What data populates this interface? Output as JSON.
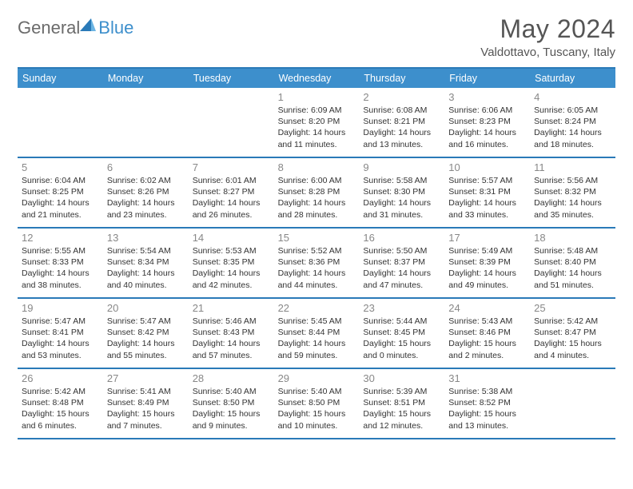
{
  "logo": {
    "part1": "General",
    "part2": "Blue"
  },
  "title": "May 2024",
  "location": "Valdottavo, Tuscany, Italy",
  "colors": {
    "brand_blue": "#3d8fcc",
    "border_blue": "#2a7ab8",
    "header_text": "#ffffff",
    "logo_gray": "#6b6b6b",
    "title_gray": "#555555",
    "daynum_gray": "#888888",
    "body_text": "#333333",
    "background": "#ffffff"
  },
  "day_headers": [
    "Sunday",
    "Monday",
    "Tuesday",
    "Wednesday",
    "Thursday",
    "Friday",
    "Saturday"
  ],
  "weeks": [
    [
      {
        "n": "",
        "sr": "",
        "ss": "",
        "dl": ""
      },
      {
        "n": "",
        "sr": "",
        "ss": "",
        "dl": ""
      },
      {
        "n": "",
        "sr": "",
        "ss": "",
        "dl": ""
      },
      {
        "n": "1",
        "sr": "Sunrise: 6:09 AM",
        "ss": "Sunset: 8:20 PM",
        "dl": "Daylight: 14 hours and 11 minutes."
      },
      {
        "n": "2",
        "sr": "Sunrise: 6:08 AM",
        "ss": "Sunset: 8:21 PM",
        "dl": "Daylight: 14 hours and 13 minutes."
      },
      {
        "n": "3",
        "sr": "Sunrise: 6:06 AM",
        "ss": "Sunset: 8:23 PM",
        "dl": "Daylight: 14 hours and 16 minutes."
      },
      {
        "n": "4",
        "sr": "Sunrise: 6:05 AM",
        "ss": "Sunset: 8:24 PM",
        "dl": "Daylight: 14 hours and 18 minutes."
      }
    ],
    [
      {
        "n": "5",
        "sr": "Sunrise: 6:04 AM",
        "ss": "Sunset: 8:25 PM",
        "dl": "Daylight: 14 hours and 21 minutes."
      },
      {
        "n": "6",
        "sr": "Sunrise: 6:02 AM",
        "ss": "Sunset: 8:26 PM",
        "dl": "Daylight: 14 hours and 23 minutes."
      },
      {
        "n": "7",
        "sr": "Sunrise: 6:01 AM",
        "ss": "Sunset: 8:27 PM",
        "dl": "Daylight: 14 hours and 26 minutes."
      },
      {
        "n": "8",
        "sr": "Sunrise: 6:00 AM",
        "ss": "Sunset: 8:28 PM",
        "dl": "Daylight: 14 hours and 28 minutes."
      },
      {
        "n": "9",
        "sr": "Sunrise: 5:58 AM",
        "ss": "Sunset: 8:30 PM",
        "dl": "Daylight: 14 hours and 31 minutes."
      },
      {
        "n": "10",
        "sr": "Sunrise: 5:57 AM",
        "ss": "Sunset: 8:31 PM",
        "dl": "Daylight: 14 hours and 33 minutes."
      },
      {
        "n": "11",
        "sr": "Sunrise: 5:56 AM",
        "ss": "Sunset: 8:32 PM",
        "dl": "Daylight: 14 hours and 35 minutes."
      }
    ],
    [
      {
        "n": "12",
        "sr": "Sunrise: 5:55 AM",
        "ss": "Sunset: 8:33 PM",
        "dl": "Daylight: 14 hours and 38 minutes."
      },
      {
        "n": "13",
        "sr": "Sunrise: 5:54 AM",
        "ss": "Sunset: 8:34 PM",
        "dl": "Daylight: 14 hours and 40 minutes."
      },
      {
        "n": "14",
        "sr": "Sunrise: 5:53 AM",
        "ss": "Sunset: 8:35 PM",
        "dl": "Daylight: 14 hours and 42 minutes."
      },
      {
        "n": "15",
        "sr": "Sunrise: 5:52 AM",
        "ss": "Sunset: 8:36 PM",
        "dl": "Daylight: 14 hours and 44 minutes."
      },
      {
        "n": "16",
        "sr": "Sunrise: 5:50 AM",
        "ss": "Sunset: 8:37 PM",
        "dl": "Daylight: 14 hours and 47 minutes."
      },
      {
        "n": "17",
        "sr": "Sunrise: 5:49 AM",
        "ss": "Sunset: 8:39 PM",
        "dl": "Daylight: 14 hours and 49 minutes."
      },
      {
        "n": "18",
        "sr": "Sunrise: 5:48 AM",
        "ss": "Sunset: 8:40 PM",
        "dl": "Daylight: 14 hours and 51 minutes."
      }
    ],
    [
      {
        "n": "19",
        "sr": "Sunrise: 5:47 AM",
        "ss": "Sunset: 8:41 PM",
        "dl": "Daylight: 14 hours and 53 minutes."
      },
      {
        "n": "20",
        "sr": "Sunrise: 5:47 AM",
        "ss": "Sunset: 8:42 PM",
        "dl": "Daylight: 14 hours and 55 minutes."
      },
      {
        "n": "21",
        "sr": "Sunrise: 5:46 AM",
        "ss": "Sunset: 8:43 PM",
        "dl": "Daylight: 14 hours and 57 minutes."
      },
      {
        "n": "22",
        "sr": "Sunrise: 5:45 AM",
        "ss": "Sunset: 8:44 PM",
        "dl": "Daylight: 14 hours and 59 minutes."
      },
      {
        "n": "23",
        "sr": "Sunrise: 5:44 AM",
        "ss": "Sunset: 8:45 PM",
        "dl": "Daylight: 15 hours and 0 minutes."
      },
      {
        "n": "24",
        "sr": "Sunrise: 5:43 AM",
        "ss": "Sunset: 8:46 PM",
        "dl": "Daylight: 15 hours and 2 minutes."
      },
      {
        "n": "25",
        "sr": "Sunrise: 5:42 AM",
        "ss": "Sunset: 8:47 PM",
        "dl": "Daylight: 15 hours and 4 minutes."
      }
    ],
    [
      {
        "n": "26",
        "sr": "Sunrise: 5:42 AM",
        "ss": "Sunset: 8:48 PM",
        "dl": "Daylight: 15 hours and 6 minutes."
      },
      {
        "n": "27",
        "sr": "Sunrise: 5:41 AM",
        "ss": "Sunset: 8:49 PM",
        "dl": "Daylight: 15 hours and 7 minutes."
      },
      {
        "n": "28",
        "sr": "Sunrise: 5:40 AM",
        "ss": "Sunset: 8:50 PM",
        "dl": "Daylight: 15 hours and 9 minutes."
      },
      {
        "n": "29",
        "sr": "Sunrise: 5:40 AM",
        "ss": "Sunset: 8:50 PM",
        "dl": "Daylight: 15 hours and 10 minutes."
      },
      {
        "n": "30",
        "sr": "Sunrise: 5:39 AM",
        "ss": "Sunset: 8:51 PM",
        "dl": "Daylight: 15 hours and 12 minutes."
      },
      {
        "n": "31",
        "sr": "Sunrise: 5:38 AM",
        "ss": "Sunset: 8:52 PM",
        "dl": "Daylight: 15 hours and 13 minutes."
      },
      {
        "n": "",
        "sr": "",
        "ss": "",
        "dl": ""
      }
    ]
  ]
}
